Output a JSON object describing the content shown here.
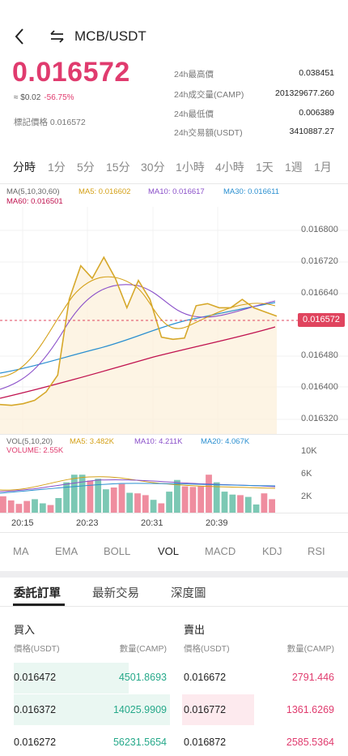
{
  "header": {
    "pair": "MCB/USDT"
  },
  "ticker": {
    "last_price": "0.016572",
    "fiat_value": "≈ $0.02",
    "change": "-56.75%",
    "mark_price": "標記價格 0.016572",
    "stats": [
      {
        "label": "24h最高價",
        "value": "0.038451"
      },
      {
        "label": "24h成交量(CAMP)",
        "value": "201329677.260"
      },
      {
        "label": "24h最低價",
        "value": "0.006389"
      },
      {
        "label": "24h交易額(USDT)",
        "value": "3410887.27"
      }
    ]
  },
  "timeframes": [
    "分時",
    "1分",
    "5分",
    "15分",
    "30分",
    "1小時",
    "4小時",
    "1天",
    "1週",
    "1月"
  ],
  "active_timeframe": "分時",
  "price_chart": {
    "legend": {
      "ma_params": "MA(5,10,30,60)",
      "ma5": "MA5: 0.016602",
      "ma10": "MA10: 0.016617",
      "ma30": "MA30: 0.016611",
      "ma60": "MA60: 0.016501"
    },
    "y_ticks": [
      "0.016800",
      "0.016720",
      "0.016640",
      "0.016480",
      "0.016400",
      "0.016320"
    ],
    "current_price_label": "0.016572",
    "colors": {
      "ma5": "#d4a017",
      "ma10": "#8a4fc9",
      "ma30": "#2a8fd0",
      "ma60": "#c0124f",
      "price": "#d6a82a"
    }
  },
  "volume_chart": {
    "legend": {
      "params": "VOL(5,10,20)",
      "ma5": "MA5: 3.482K",
      "ma10": "MA10: 4.211K",
      "ma20": "MA20: 4.067K",
      "volume": "VOLUME: 2.55K"
    },
    "y_ticks": [
      "10K",
      "6K",
      "2K"
    ],
    "x_ticks": [
      "20:15",
      "20:23",
      "20:31",
      "20:39"
    ]
  },
  "chart_data": {
    "type": "line",
    "price_series": [
      0.01637,
      0.016368,
      0.016372,
      0.01638,
      0.0164,
      0.01644,
      0.01662,
      0.0167,
      0.01667,
      0.01672,
      0.01667,
      0.0166,
      0.016665,
      0.01662,
      0.01653,
      0.016525,
      0.016528,
      0.016605,
      0.01661,
      0.0166,
      0.0166,
      0.01662,
      0.0166,
      0.01659,
      0.01658
    ],
    "ylim": [
      0.0163,
      0.01684
    ],
    "volume_bars": [
      {
        "v": 2.8,
        "up": false
      },
      {
        "v": 2.1,
        "up": false
      },
      {
        "v": 1.5,
        "up": false
      },
      {
        "v": 2.0,
        "up": false
      },
      {
        "v": 2.3,
        "up": true
      },
      {
        "v": 1.6,
        "up": true
      },
      {
        "v": 1.3,
        "up": false
      },
      {
        "v": 2.5,
        "up": true
      },
      {
        "v": 5.2,
        "up": true
      },
      {
        "v": 6.5,
        "up": true
      },
      {
        "v": 6.5,
        "up": true
      },
      {
        "v": 5.5,
        "up": false
      },
      {
        "v": 5.8,
        "up": true
      },
      {
        "v": 4.0,
        "up": true
      },
      {
        "v": 4.3,
        "up": false
      },
      {
        "v": 4.9,
        "up": false
      },
      {
        "v": 3.4,
        "up": true
      },
      {
        "v": 3.3,
        "up": false
      },
      {
        "v": 3.0,
        "up": false
      },
      {
        "v": 2.2,
        "up": true
      },
      {
        "v": 1.6,
        "up": false
      },
      {
        "v": 3.6,
        "up": true
      },
      {
        "v": 5.6,
        "up": true
      },
      {
        "v": 4.5,
        "up": false
      },
      {
        "v": 4.4,
        "up": false
      },
      {
        "v": 4.5,
        "up": false
      },
      {
        "v": 6.5,
        "up": false
      },
      {
        "v": 5.2,
        "up": true
      },
      {
        "v": 3.6,
        "up": true
      },
      {
        "v": 3.1,
        "up": true
      },
      {
        "v": 3.0,
        "up": false
      },
      {
        "v": 2.7,
        "up": true
      },
      {
        "v": 1.4,
        "up": true
      },
      {
        "v": 3.3,
        "up": false
      },
      {
        "v": 2.3,
        "up": false
      }
    ],
    "vol_ylim": [
      0,
      10
    ]
  },
  "indicators": [
    "MA",
    "EMA",
    "BOLL",
    "VOL",
    "MACD",
    "KDJ",
    "RSI"
  ],
  "active_indicator": "VOL",
  "tabs": [
    "委託訂單",
    "最新交易",
    "深度圖"
  ],
  "orderbook": {
    "buy_title": "買入",
    "sell_title": "賣出",
    "buy_price_header": "價格(USDT)",
    "buy_qty_header": "數量(CAMP)",
    "sell_price_header": "價格(USDT)",
    "sell_qty_header": "數量(CAMP)",
    "buys": [
      {
        "price": "0.016472",
        "qty": "4501.8693",
        "depth": 0.52
      },
      {
        "price": "0.016372",
        "qty": "14025.9909",
        "depth": 0.82
      },
      {
        "price": "0.016272",
        "qty": "56231.5654",
        "depth": 1.0
      }
    ],
    "sells": [
      {
        "price": "0.016672",
        "qty": "2791.446",
        "depth": 0.0
      },
      {
        "price": "0.016772",
        "qty": "1361.6269",
        "depth": 0.45
      },
      {
        "price": "0.016872",
        "qty": "2585.5364",
        "depth": 0.0
      }
    ]
  }
}
